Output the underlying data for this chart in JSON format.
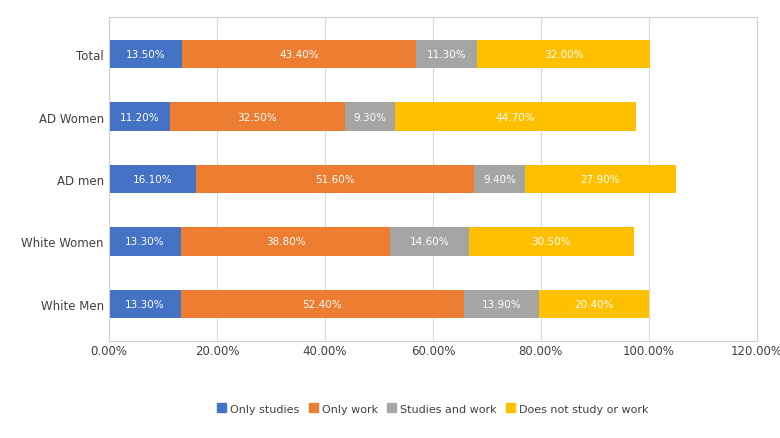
{
  "categories": [
    "White Men",
    "White Women",
    "AD men",
    "AD Women",
    "Total"
  ],
  "series": {
    "Only studies": [
      13.3,
      13.3,
      16.1,
      11.2,
      13.5
    ],
    "Only work": [
      52.4,
      38.8,
      51.6,
      32.5,
      43.4
    ],
    "Studies and work": [
      13.9,
      14.6,
      9.4,
      9.3,
      11.3
    ],
    "Does not study or work": [
      20.4,
      30.5,
      27.9,
      44.7,
      32.0
    ]
  },
  "colors": {
    "Only studies": "#4472C4",
    "Only work": "#ED7D31",
    "Studies and work": "#A5A5A5",
    "Does not study or work": "#FFC000"
  },
  "label_colors": {
    "Only studies": "#ffffff",
    "Only work": "#ffffff",
    "Studies and work": "#ffffff",
    "Does not study or work": "#ffffff"
  },
  "xlim": [
    0,
    120
  ],
  "xticks": [
    0,
    20,
    40,
    60,
    80,
    100,
    120
  ],
  "xtick_labels": [
    "0.00%",
    "20.00%",
    "40.00%",
    "60.00%",
    "80.00%",
    "100.00%",
    "120.00%"
  ],
  "bar_height": 0.45,
  "label_fontsize": 7.5,
  "tick_fontsize": 8.5,
  "legend_fontsize": 8,
  "figure_facecolor": "#ffffff",
  "axes_facecolor": "#ffffff",
  "border_color": "#d0d0d0",
  "grid_color": "#d9d9d9"
}
